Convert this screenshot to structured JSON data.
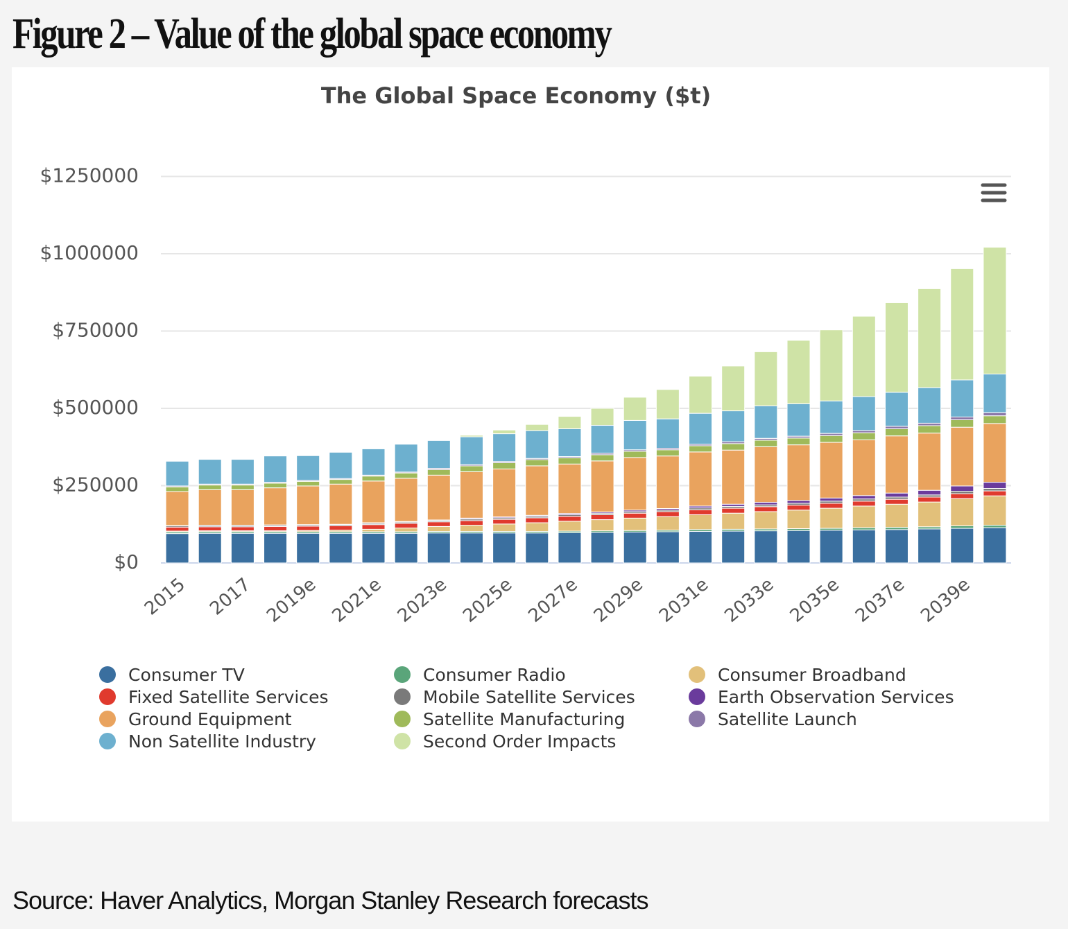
{
  "header": {
    "title": "Figure 2 – Value of the global space economy"
  },
  "footer": {
    "source": "Source: Haver Analytics, Morgan Stanley Research forecasts"
  },
  "chart_data": {
    "type": "stacked_bar",
    "title": "The Global Space Economy ($t)",
    "categories": [
      "2015",
      null,
      "2017",
      null,
      "2019e",
      null,
      "2021e",
      null,
      "2023e",
      null,
      "2025e",
      null,
      "2027e",
      null,
      "2029e",
      null,
      "2031e",
      null,
      "2033e",
      null,
      "2035e",
      null,
      "2037e",
      null,
      "2039e",
      null
    ],
    "ylim": [
      0,
      1250000
    ],
    "yticks": [
      {
        "value": 0,
        "label": "$0"
      },
      {
        "value": 250000,
        "label": "$250000"
      },
      {
        "value": 500000,
        "label": "$500000"
      },
      {
        "value": 750000,
        "label": "$750000"
      },
      {
        "value": 1000000,
        "label": "$1000000"
      },
      {
        "value": 1250000,
        "label": "$1250000"
      }
    ],
    "grid": true,
    "series": [
      {
        "name": "Consumer TV",
        "color": "#3a6f9f",
        "values": [
          95000,
          96000,
          96000,
          96000,
          96000,
          96000,
          96000,
          96000,
          97000,
          97000,
          97000,
          97000,
          98000,
          99000,
          100000,
          101000,
          102000,
          103000,
          104000,
          105000,
          106000,
          107000,
          108000,
          110000,
          112000,
          114000
        ]
      },
      {
        "name": "Consumer Radio",
        "color": "#5aa57a",
        "values": [
          5000,
          5000,
          5000,
          5000,
          5000,
          5000,
          5000,
          5000,
          5000,
          5000,
          5000,
          5000,
          5000,
          5000,
          5000,
          5000,
          6000,
          6000,
          6000,
          6000,
          6000,
          7000,
          7000,
          7000,
          8000,
          8000
        ]
      },
      {
        "name": "Consumer Broadband",
        "color": "#e2c07a",
        "values": [
          3000,
          3000,
          3000,
          3000,
          4000,
          5000,
          8000,
          12000,
          16000,
          20000,
          24000,
          28000,
          32000,
          36000,
          40000,
          44000,
          48000,
          52000,
          56000,
          60000,
          65000,
          70000,
          75000,
          80000,
          88000,
          95000
        ]
      },
      {
        "name": "Fixed Satellite Services",
        "color": "#e03a2e",
        "values": [
          13000,
          13000,
          13000,
          14000,
          14000,
          14000,
          15000,
          15000,
          15000,
          15000,
          15000,
          16000,
          16000,
          16000,
          16000,
          16000,
          16000,
          16000,
          16000,
          16000,
          16000,
          16000,
          16000,
          16000,
          16000,
          16000
        ]
      },
      {
        "name": "Mobile Satellite Services",
        "color": "#7a7a7a",
        "values": [
          4000,
          4000,
          4000,
          4000,
          4000,
          4000,
          4000,
          4000,
          4000,
          5000,
          5000,
          5000,
          5000,
          5000,
          5000,
          5000,
          6000,
          6000,
          6000,
          6000,
          7000,
          7000,
          7000,
          7000,
          8000,
          8000
        ]
      },
      {
        "name": "Earth Observation Services",
        "color": "#6a3b9c",
        "values": [
          1000,
          1000,
          1000,
          1000,
          1000,
          1000,
          2000,
          2000,
          2000,
          3000,
          3000,
          3000,
          4000,
          4000,
          5000,
          5000,
          6000,
          7000,
          8000,
          9000,
          10000,
          11000,
          13000,
          15000,
          17000,
          20000
        ]
      },
      {
        "name": "Ground Equipment",
        "color": "#e9a35e",
        "values": [
          110000,
          115000,
          115000,
          120000,
          125000,
          130000,
          135000,
          140000,
          145000,
          150000,
          155000,
          160000,
          160000,
          165000,
          170000,
          170000,
          175000,
          175000,
          180000,
          180000,
          180000,
          180000,
          185000,
          185000,
          190000,
          190000
        ]
      },
      {
        "name": "Satellite Manufacturing",
        "color": "#9fba5a",
        "values": [
          15000,
          15000,
          15000,
          15000,
          15000,
          15000,
          16000,
          17000,
          18000,
          19000,
          20000,
          20000,
          20000,
          20000,
          20000,
          20000,
          20000,
          21000,
          21000,
          22000,
          22000,
          23000,
          23000,
          24000,
          24000,
          25000
        ]
      },
      {
        "name": "Satellite Launch",
        "color": "#8b78a8",
        "values": [
          3000,
          3000,
          3000,
          3000,
          3000,
          3000,
          3000,
          3000,
          4000,
          4000,
          4000,
          4000,
          4000,
          5000,
          5000,
          5000,
          5000,
          6000,
          6000,
          6000,
          7000,
          7000,
          8000,
          8000,
          9000,
          10000
        ]
      },
      {
        "name": "Non Satellite Industry",
        "color": "#6db0cf",
        "values": [
          80000,
          80000,
          80000,
          85000,
          80000,
          85000,
          85000,
          90000,
          90000,
          90000,
          90000,
          90000,
          90000,
          90000,
          95000,
          95000,
          100000,
          100000,
          105000,
          105000,
          105000,
          110000,
          110000,
          115000,
          120000,
          125000
        ]
      },
      {
        "name": "Second Order Impacts",
        "color": "#cfe3a6",
        "values": [
          0,
          0,
          0,
          0,
          0,
          0,
          0,
          0,
          0,
          5000,
          12000,
          20000,
          40000,
          55000,
          75000,
          95000,
          120000,
          145000,
          175000,
          205000,
          230000,
          260000,
          290000,
          320000,
          360000,
          410000
        ]
      }
    ]
  }
}
